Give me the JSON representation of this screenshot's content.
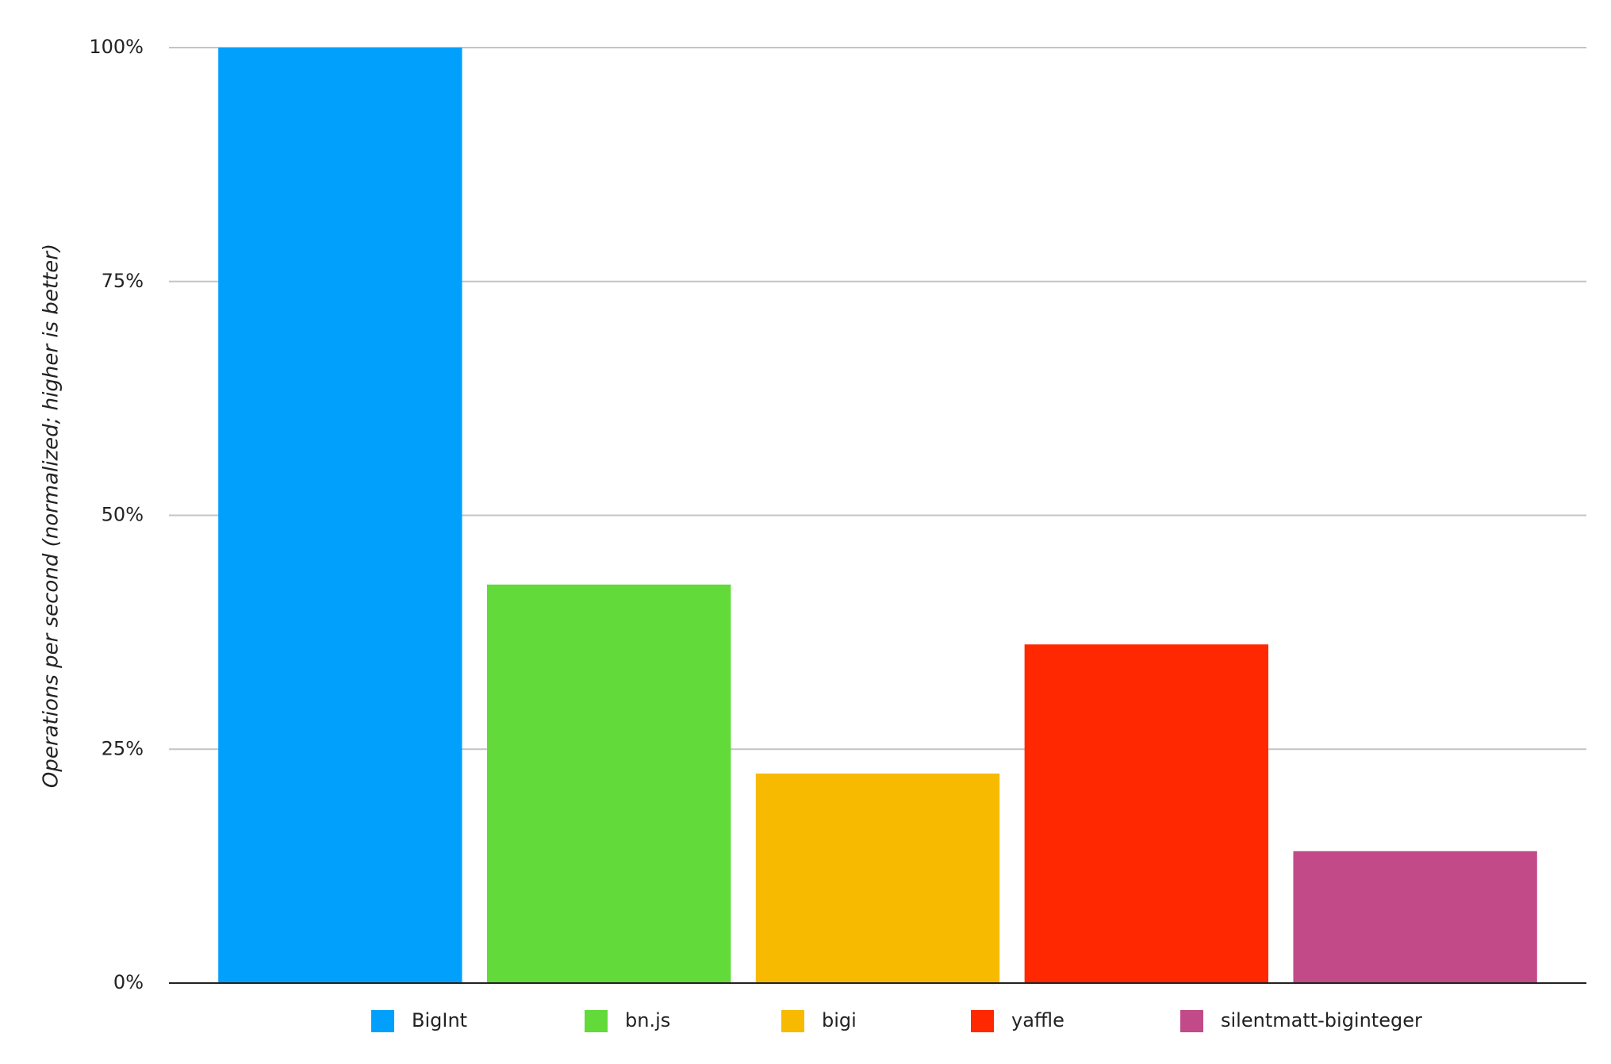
{
  "chart_data": {
    "type": "bar",
    "y_label": "Operations per second (normalized; higher is better)",
    "categories": [
      null
    ],
    "series": [
      {
        "name": "BigInt",
        "color": "#00a0fc",
        "values": [
          100
        ]
      },
      {
        "name": "bn.js",
        "color": "#61da3a",
        "values": [
          42.6
        ]
      },
      {
        "name": "bigi",
        "color": "#f7ba00",
        "values": [
          22.4
        ]
      },
      {
        "name": "yaffle",
        "color": "#ff2800",
        "values": [
          36.2
        ]
      },
      {
        "name": "silentmatt-biginteger",
        "color": "#c24a88",
        "values": [
          14.1
        ]
      }
    ],
    "ylim": [
      0,
      100
    ],
    "yticks": [
      {
        "value": 0,
        "label": "0%"
      },
      {
        "value": 25,
        "label": "25%"
      },
      {
        "value": 50,
        "label": "50%"
      },
      {
        "value": 75,
        "label": "75%"
      },
      {
        "value": 100,
        "label": "100%"
      }
    ],
    "grid": true,
    "legend": "bottom"
  }
}
